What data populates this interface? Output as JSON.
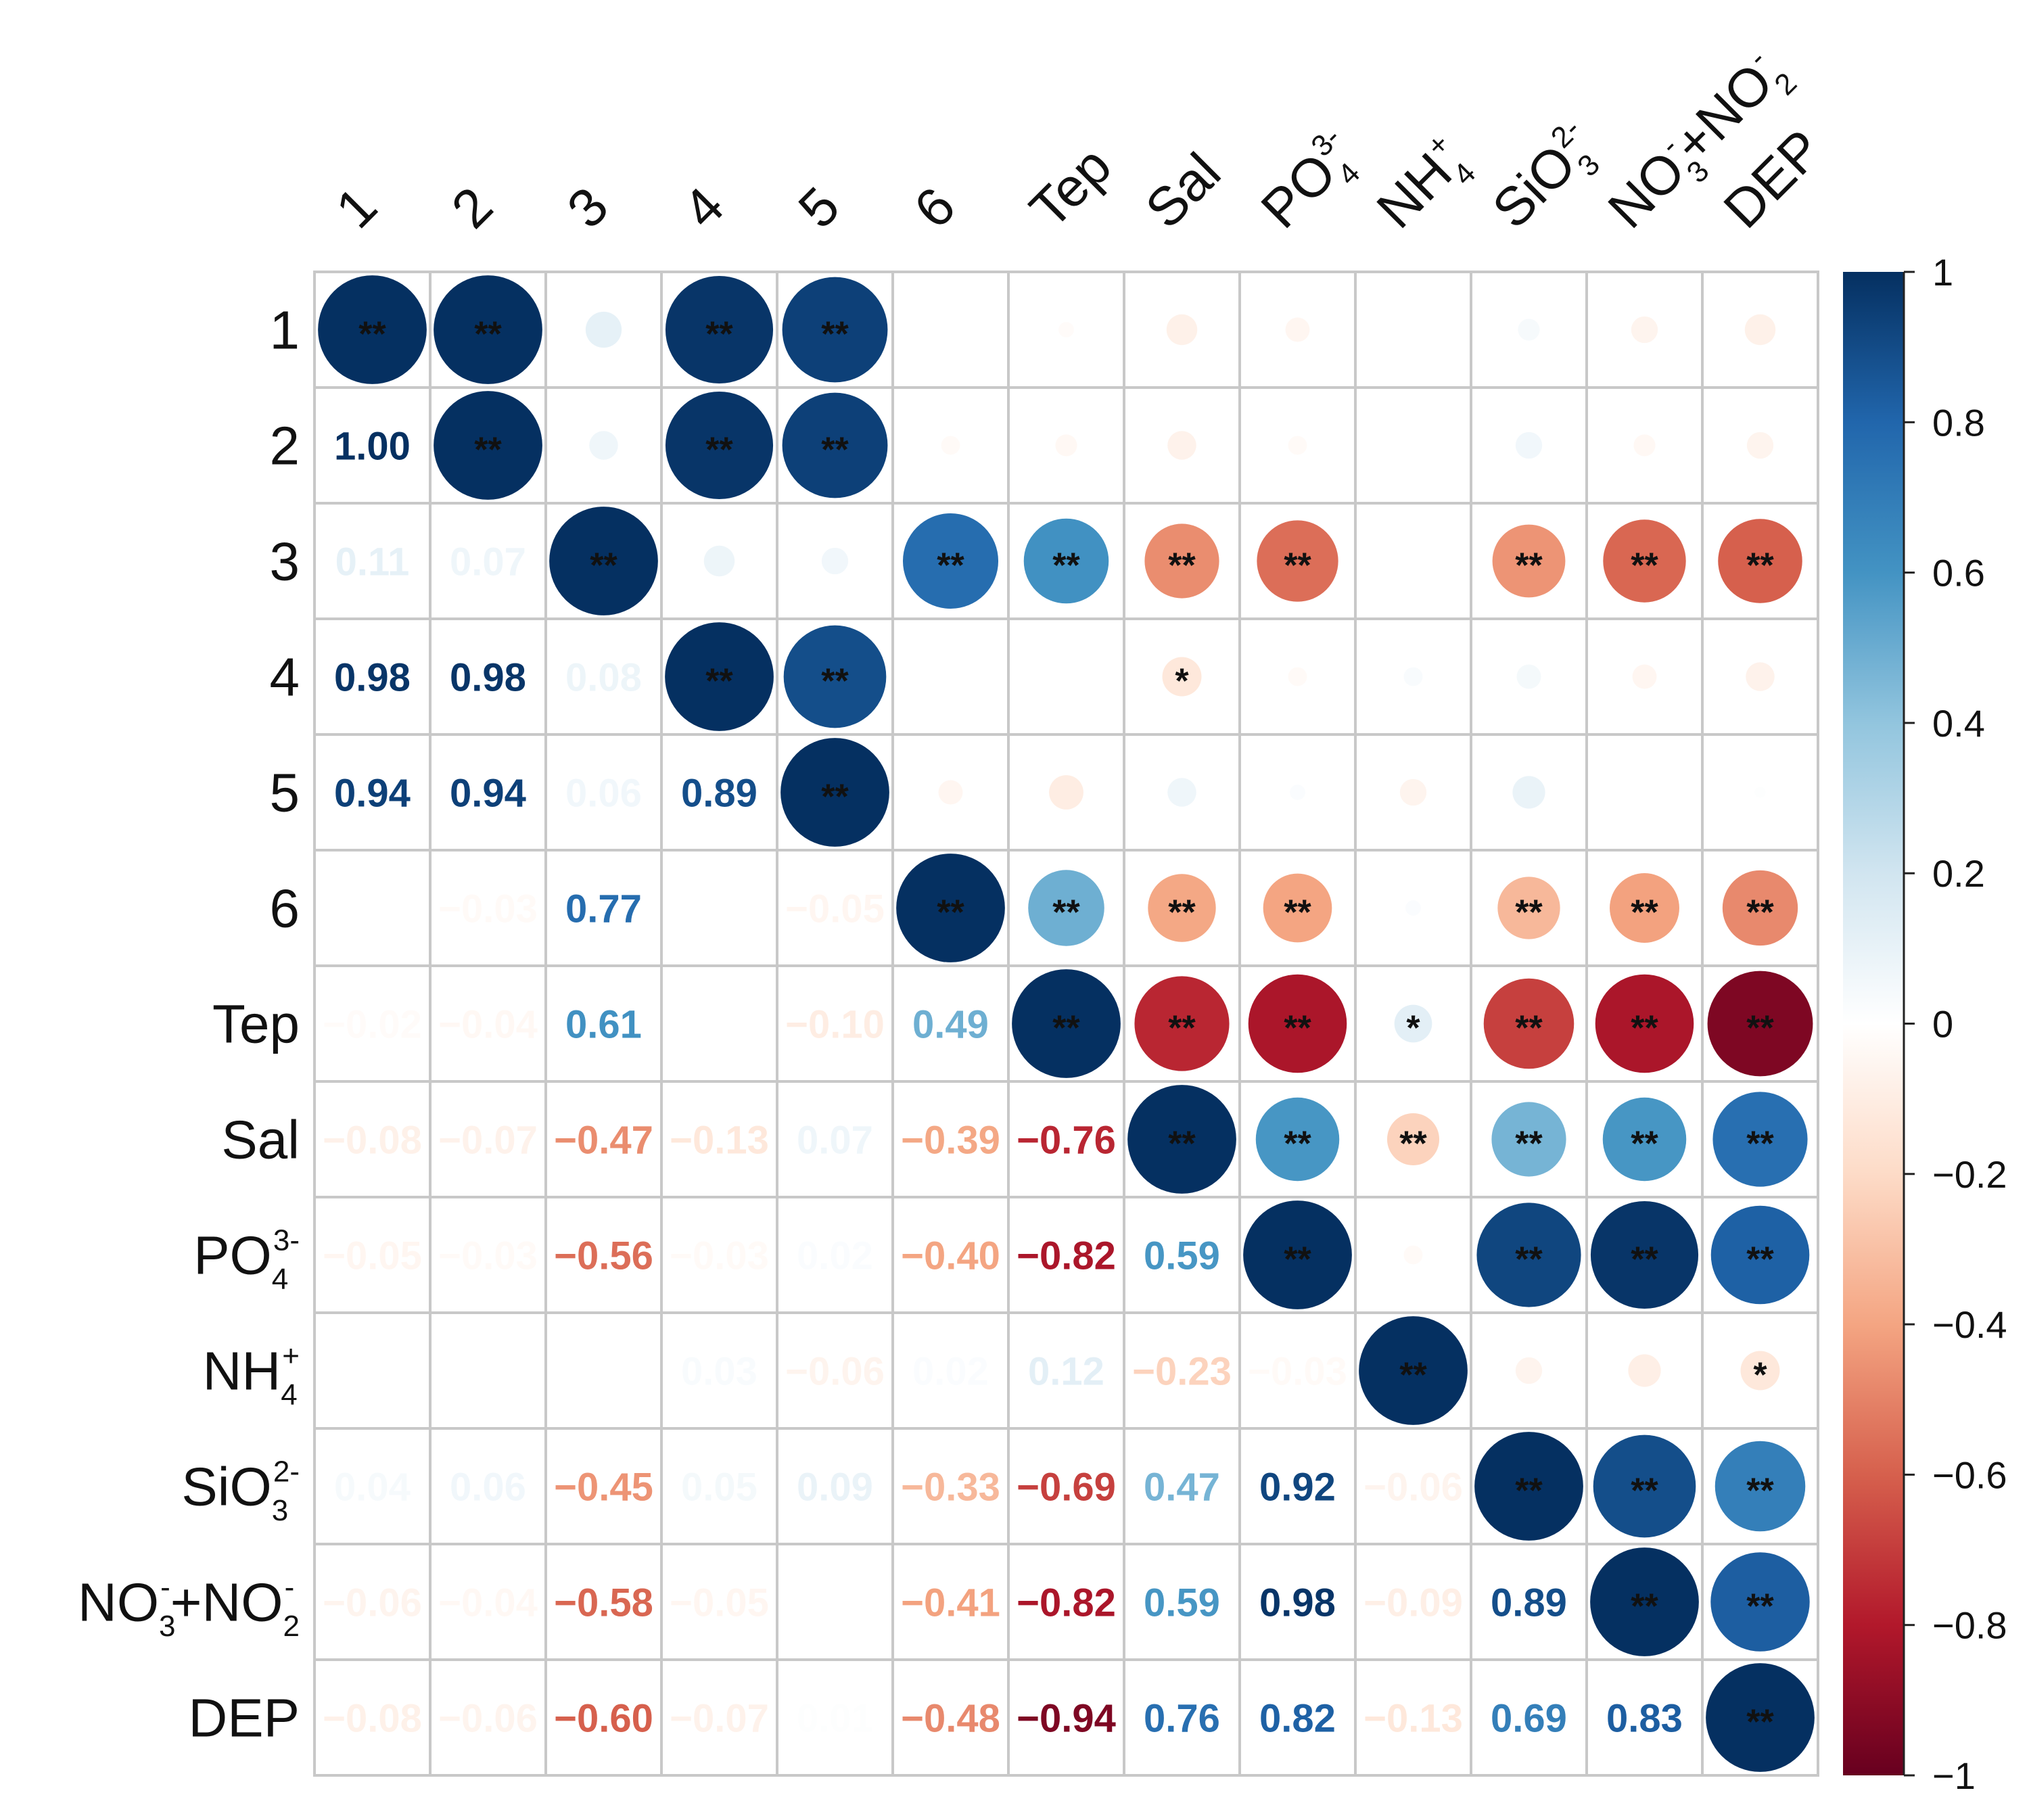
{
  "chart_data": {
    "type": "heatmap",
    "title": "",
    "xlabel": "",
    "ylabel": "",
    "variables": [
      {
        "base": "1",
        "sub": "",
        "sup": ""
      },
      {
        "base": "2",
        "sub": "",
        "sup": ""
      },
      {
        "base": "3",
        "sub": "",
        "sup": ""
      },
      {
        "base": "4",
        "sub": "",
        "sup": ""
      },
      {
        "base": "5",
        "sub": "",
        "sup": ""
      },
      {
        "base": "6",
        "sub": "",
        "sup": ""
      },
      {
        "base": "Tep",
        "sub": "",
        "sup": ""
      },
      {
        "base": "Sal",
        "sub": "",
        "sup": ""
      },
      {
        "base": "PO",
        "sub": "4",
        "sup": "3-"
      },
      {
        "base": "NH",
        "sub": "4",
        "sup": "+"
      },
      {
        "base": "SiO",
        "sub": "3",
        "sup": "2-"
      },
      {
        "base": "NO",
        "sub": "3",
        "sup": "-",
        "base2": "+NO",
        "sub2": "2",
        "sup2": "-"
      },
      {
        "base": "DEP",
        "sub": "",
        "sup": ""
      }
    ],
    "matrix": [
      [
        1.0,
        1.0,
        0.11,
        0.98,
        0.94,
        0.0,
        -0.02,
        -0.08,
        -0.05,
        0.0,
        0.04,
        -0.06,
        -0.08
      ],
      [
        1.0,
        1.0,
        0.07,
        0.98,
        0.94,
        -0.03,
        -0.04,
        -0.07,
        -0.03,
        0.0,
        0.06,
        -0.04,
        -0.06
      ],
      [
        0.11,
        0.07,
        1.0,
        0.08,
        0.06,
        0.77,
        0.61,
        -0.47,
        -0.56,
        0.0,
        -0.45,
        -0.58,
        -0.6
      ],
      [
        0.98,
        0.98,
        0.08,
        1.0,
        0.89,
        0.0,
        0.0,
        -0.13,
        -0.03,
        0.03,
        0.05,
        -0.05,
        -0.07
      ],
      [
        0.94,
        0.94,
        0.06,
        0.89,
        1.0,
        -0.05,
        -0.1,
        0.07,
        0.02,
        -0.06,
        0.09,
        0.0,
        0.01
      ],
      [
        0.0,
        -0.03,
        0.77,
        0.0,
        -0.05,
        1.0,
        0.49,
        -0.39,
        -0.4,
        0.02,
        -0.33,
        -0.41,
        -0.48
      ],
      [
        -0.02,
        -0.04,
        0.61,
        0.0,
        -0.1,
        0.49,
        1.0,
        -0.76,
        -0.82,
        0.12,
        -0.69,
        -0.82,
        -0.94
      ],
      [
        -0.08,
        -0.07,
        -0.47,
        -0.13,
        0.07,
        -0.39,
        -0.76,
        1.0,
        0.59,
        -0.23,
        0.47,
        0.59,
        0.76
      ],
      [
        -0.05,
        -0.03,
        -0.56,
        -0.03,
        0.02,
        -0.4,
        -0.82,
        0.59,
        1.0,
        -0.03,
        0.92,
        0.98,
        0.82
      ],
      [
        0.0,
        0.0,
        0.0,
        0.03,
        -0.06,
        0.02,
        0.12,
        -0.23,
        -0.03,
        1.0,
        -0.06,
        -0.09,
        -0.13
      ],
      [
        0.04,
        0.06,
        -0.45,
        0.05,
        0.09,
        -0.33,
        -0.69,
        0.47,
        0.92,
        -0.06,
        1.0,
        0.89,
        0.69
      ],
      [
        -0.06,
        -0.04,
        -0.58,
        -0.05,
        0.0,
        -0.41,
        -0.82,
        0.59,
        0.98,
        -0.09,
        0.89,
        1.0,
        0.83
      ],
      [
        -0.08,
        -0.06,
        -0.6,
        -0.07,
        0.01,
        -0.48,
        -0.94,
        0.76,
        0.82,
        -0.13,
        0.69,
        0.83,
        1.0
      ]
    ],
    "significance": [
      [
        "**",
        "**",
        "",
        "**",
        "**",
        "",
        "",
        "",
        "",
        "",
        "",
        "",
        ""
      ],
      [
        "",
        "**",
        "",
        "**",
        "**",
        "",
        "",
        "",
        "",
        "",
        "",
        "",
        ""
      ],
      [
        "",
        "",
        "**",
        "",
        "",
        "**",
        "**",
        "**",
        "**",
        "",
        "**",
        "**",
        "**"
      ],
      [
        "",
        "",
        "",
        "**",
        "**",
        "",
        "",
        "*",
        "",
        "",
        "",
        "",
        ""
      ],
      [
        "",
        "",
        "",
        "",
        "**",
        "",
        "",
        "",
        "",
        "",
        "",
        "",
        ""
      ],
      [
        "",
        "",
        "",
        "",
        "",
        "**",
        "**",
        "**",
        "**",
        "",
        "**",
        "**",
        "**"
      ],
      [
        "",
        "",
        "",
        "",
        "",
        "",
        "**",
        "**",
        "**",
        "*",
        "**",
        "**",
        "**"
      ],
      [
        "",
        "",
        "",
        "",
        "",
        "",
        "",
        "**",
        "**",
        "**",
        "**",
        "**",
        "**"
      ],
      [
        "",
        "",
        "",
        "",
        "",
        "",
        "",
        "",
        "**",
        "",
        "**",
        "**",
        "**"
      ],
      [
        "",
        "",
        "",
        "",
        "",
        "",
        "",
        "",
        "",
        "**",
        "",
        "",
        "*"
      ],
      [
        "",
        "",
        "",
        "",
        "",
        "",
        "",
        "",
        "",
        "",
        "**",
        "**",
        "**"
      ],
      [
        "",
        "",
        "",
        "",
        "",
        "",
        "",
        "",
        "",
        "",
        "",
        "**",
        "**"
      ],
      [
        "",
        "",
        "",
        "",
        "",
        "",
        "",
        "",
        "",
        "",
        "",
        "",
        "**"
      ]
    ],
    "lower_triangle": "numbers",
    "upper_triangle": "circles",
    "value_range": [
      -1,
      1
    ],
    "colorbar_ticks": [
      {
        "value": 1,
        "label": "1"
      },
      {
        "value": 0.8,
        "label": "0.8"
      },
      {
        "value": 0.6,
        "label": "0.6"
      },
      {
        "value": 0.4,
        "label": "0.4"
      },
      {
        "value": 0.2,
        "label": "0.2"
      },
      {
        "value": 0,
        "label": "0"
      },
      {
        "value": -0.2,
        "label": "−0.2"
      },
      {
        "value": -0.4,
        "label": "−0.4"
      },
      {
        "value": -0.6,
        "label": "−0.6"
      },
      {
        "value": -0.8,
        "label": "−0.8"
      },
      {
        "value": -1,
        "label": "−1"
      }
    ],
    "colormap": [
      "#67001F",
      "#B2182B",
      "#D6604D",
      "#F4A582",
      "#FDDBC7",
      "#FFFFFF",
      "#D1E5F0",
      "#92C5DE",
      "#4393C3",
      "#2166AC",
      "#053061"
    ],
    "legend": "right",
    "grid": true
  }
}
